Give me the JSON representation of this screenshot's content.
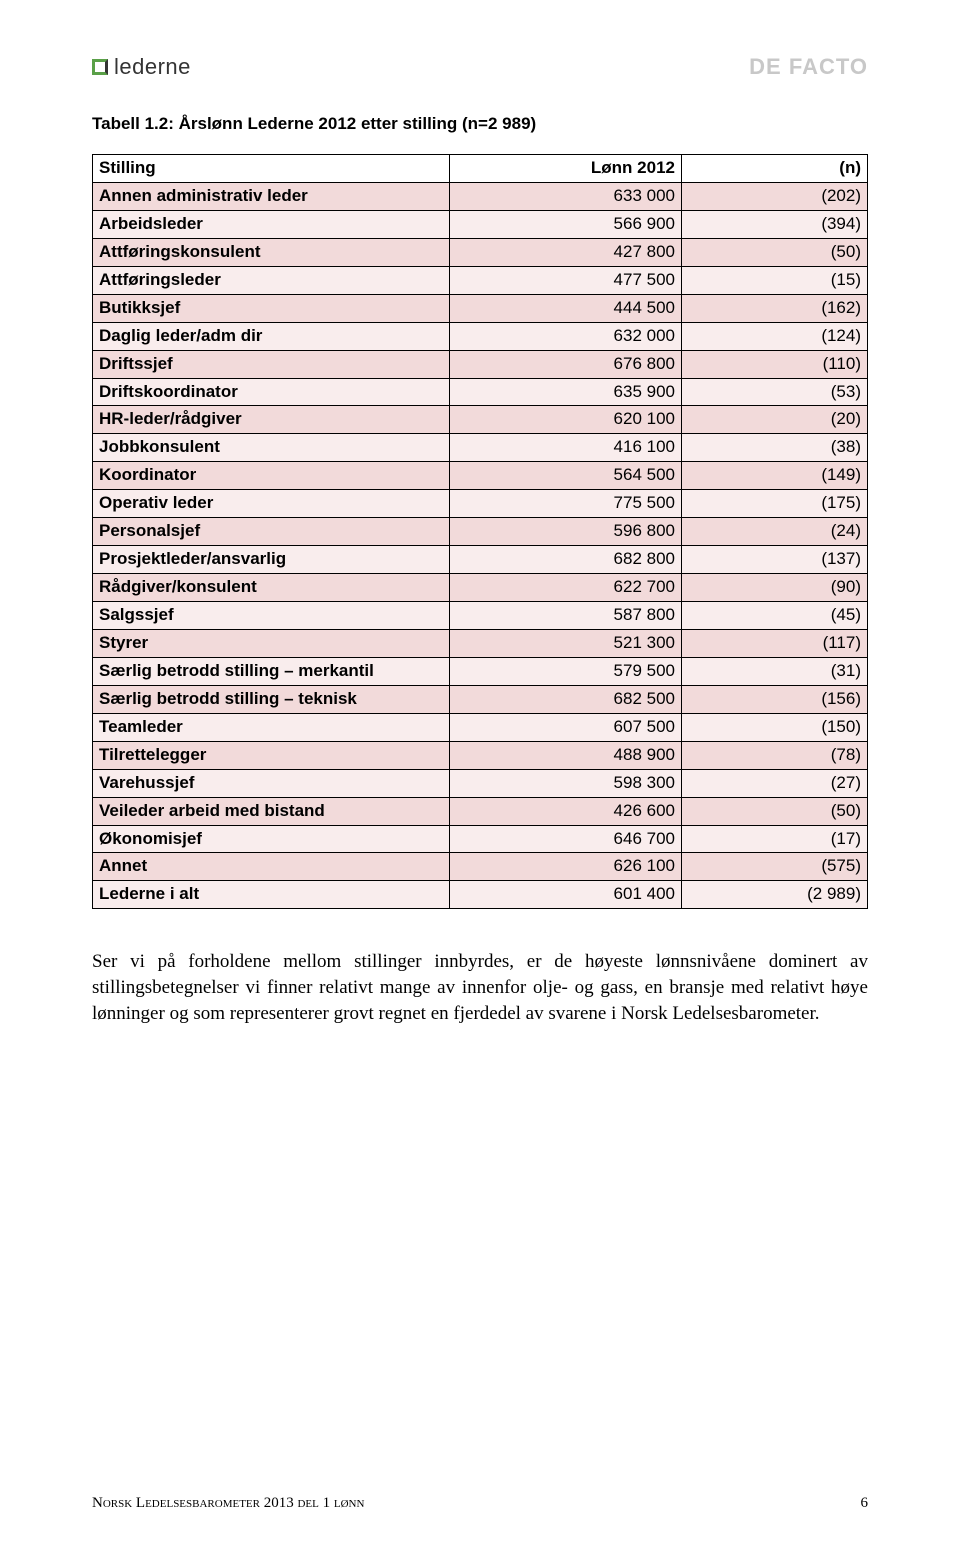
{
  "header": {
    "logo_left": "lederne",
    "logo_right": "DE FACTO"
  },
  "caption": "Tabell 1.2: Årslønn Lederne 2012 etter stilling (n=2 989)",
  "table": {
    "columns": {
      "c1": "Stilling",
      "c2": "Lønn 2012",
      "c3": "(n)"
    },
    "col_widths": [
      "46%",
      "30%",
      "24%"
    ],
    "row_alt_colors": [
      "#f2dada",
      "#f9eded"
    ],
    "border_color": "#000000",
    "rows": [
      {
        "label": "Annen administrativ leder",
        "salary": "633 000",
        "n": "(202)"
      },
      {
        "label": "Arbeidsleder",
        "salary": "566 900",
        "n": "(394)"
      },
      {
        "label": "Attføringskonsulent",
        "salary": "427 800",
        "n": "(50)"
      },
      {
        "label": "Attføringsleder",
        "salary": "477 500",
        "n": "(15)"
      },
      {
        "label": "Butikksjef",
        "salary": "444 500",
        "n": "(162)"
      },
      {
        "label": "Daglig leder/adm dir",
        "salary": "632 000",
        "n": "(124)"
      },
      {
        "label": "Driftssjef",
        "salary": "676 800",
        "n": "(110)"
      },
      {
        "label": "Driftskoordinator",
        "salary": "635 900",
        "n": "(53)"
      },
      {
        "label": "HR-leder/rådgiver",
        "salary": "620 100",
        "n": "(20)"
      },
      {
        "label": "Jobbkonsulent",
        "salary": "416 100",
        "n": "(38)"
      },
      {
        "label": "Koordinator",
        "salary": "564 500",
        "n": "(149)"
      },
      {
        "label": "Operativ leder",
        "salary": "775 500",
        "n": "(175)"
      },
      {
        "label": "Personalsjef",
        "salary": "596 800",
        "n": "(24)"
      },
      {
        "label": "Prosjektleder/ansvarlig",
        "salary": "682 800",
        "n": "(137)"
      },
      {
        "label": "Rådgiver/konsulent",
        "salary": "622 700",
        "n": "(90)"
      },
      {
        "label": "Salgssjef",
        "salary": "587 800",
        "n": "(45)"
      },
      {
        "label": "Styrer",
        "salary": "521 300",
        "n": "(117)"
      },
      {
        "label": "Særlig betrodd stilling – merkantil",
        "salary": "579 500",
        "n": "(31)"
      },
      {
        "label": "Særlig betrodd stilling – teknisk",
        "salary": "682 500",
        "n": "(156)"
      },
      {
        "label": "Teamleder",
        "salary": "607 500",
        "n": "(150)"
      },
      {
        "label": "Tilrettelegger",
        "salary": "488 900",
        "n": "(78)"
      },
      {
        "label": "Varehussjef",
        "salary": "598 300",
        "n": "(27)"
      },
      {
        "label": "Veileder arbeid med bistand",
        "salary": "426 600",
        "n": "(50)"
      },
      {
        "label": "Økonomisjef",
        "salary": "646 700",
        "n": "(17)"
      },
      {
        "label": "Annet",
        "salary": "626 100",
        "n": "(575)"
      },
      {
        "label": "Lederne i alt",
        "salary": "601 400",
        "n": "(2 989)"
      }
    ]
  },
  "paragraph": "Ser vi på forholdene mellom stillinger innbyrdes, er de høyeste lønnsnivåene dominert av stillingsbetegnelser vi finner relativt mange av innenfor olje- og gass, en bransje med relativt høye lønninger og som representerer grovt regnet en fjerdedel av svarene i Norsk Ledelsesbarometer.",
  "footer": {
    "left": "Norsk Ledelsesbarometer 2013 del 1 lønn",
    "page": "6"
  }
}
